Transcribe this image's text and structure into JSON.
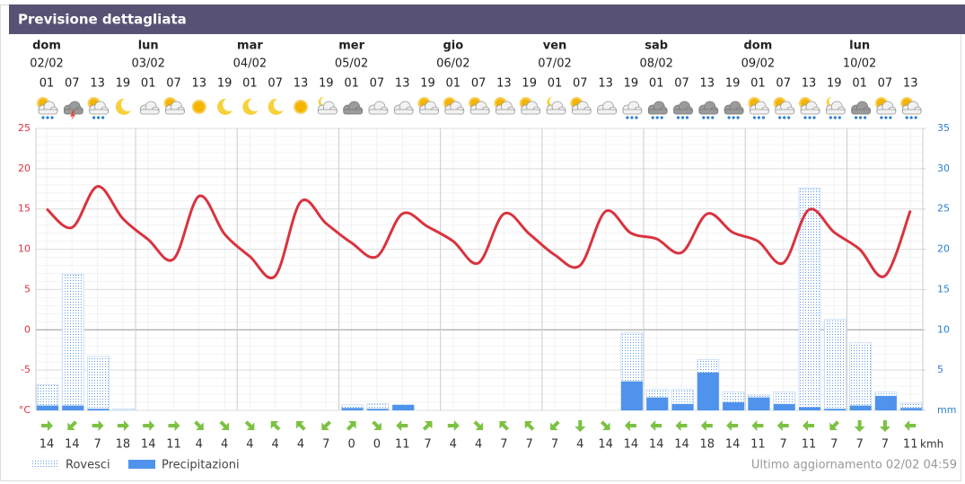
{
  "chart_data": {
    "type": "combo",
    "title": "Previsione dettagliata",
    "days": [
      {
        "name": "dom",
        "date": "02/02"
      },
      {
        "name": "lun",
        "date": "03/02"
      },
      {
        "name": "mar",
        "date": "04/02"
      },
      {
        "name": "mer",
        "date": "05/02"
      },
      {
        "name": "gio",
        "date": "06/02"
      },
      {
        "name": "ven",
        "date": "07/02"
      },
      {
        "name": "sab",
        "date": "08/02"
      },
      {
        "name": "dom",
        "date": "09/02"
      },
      {
        "name": "lun",
        "date": "10/02"
      }
    ],
    "categories": [
      "01",
      "07",
      "13",
      "19",
      "01",
      "07",
      "13",
      "19",
      "01",
      "07",
      "13",
      "19",
      "01",
      "07",
      "13",
      "19",
      "01",
      "07",
      "13",
      "19",
      "01",
      "07",
      "13",
      "19",
      "01",
      "07",
      "13",
      "19",
      "01",
      "07",
      "13",
      "19",
      "01",
      "07",
      "13"
    ],
    "temperature": {
      "color": "#d9333f",
      "values": [
        15,
        12.7,
        17.8,
        13.8,
        11.2,
        8.8,
        16.6,
        11.9,
        9.1,
        6.7,
        15.9,
        13.2,
        10.8,
        9.1,
        14.4,
        12.8,
        11,
        8.3,
        14.4,
        11.9,
        9.3,
        8,
        14.7,
        12,
        11.3,
        9.6,
        14.4,
        12.1,
        11,
        8.3,
        14.9,
        12.1,
        10,
        6.7,
        14.8
      ]
    },
    "series": [
      {
        "name": "Rovesci",
        "color": "#5b9be6",
        "axis": "y2",
        "values": [
          3.2,
          16.9,
          6.7,
          0.2,
          0,
          0,
          0,
          0,
          0,
          0,
          0,
          0,
          0.7,
          0.8,
          0.6,
          0,
          0,
          0,
          0,
          0,
          0,
          0,
          0,
          9.6,
          2.6,
          2.6,
          6.3,
          2.3,
          1.9,
          2.3,
          27.6,
          11.3,
          8.4,
          2.3,
          0.9
        ]
      },
      {
        "name": "Precipitazioni",
        "color": "#4f93ec",
        "axis": "y2",
        "values": [
          0.6,
          0.6,
          0.2,
          0,
          0,
          0,
          0,
          0,
          0,
          0,
          0,
          0,
          0.3,
          0.2,
          0.7,
          0,
          0,
          0,
          0,
          0,
          0,
          0,
          0,
          3.6,
          1.6,
          0.8,
          4.7,
          1.0,
          1.6,
          0.8,
          0.4,
          0.2,
          0.6,
          1.8,
          0.3
        ]
      }
    ],
    "ylim": [
      -10,
      25
    ],
    "yticks": [
      {
        "value": -10,
        "label": "°C"
      },
      -5,
      0,
      5,
      10,
      15,
      20,
      25
    ],
    "y2lim": [
      0,
      35
    ],
    "y2ticks": [
      {
        "value": 0,
        "label": "mm"
      },
      5,
      10,
      15,
      20,
      25,
      30,
      35
    ],
    "wind": {
      "unit": "kmh",
      "values": [
        14,
        14,
        7,
        18,
        14,
        11,
        4,
        4,
        4,
        4,
        4,
        7,
        0,
        0,
        11,
        7,
        4,
        4,
        7,
        7,
        7,
        4,
        14,
        14,
        14,
        14,
        18,
        14,
        11,
        7,
        11,
        7,
        7,
        7,
        11
      ]
    },
    "updated": "Ultimo aggiornamento 02/02 04:59",
    "grid": true
  }
}
